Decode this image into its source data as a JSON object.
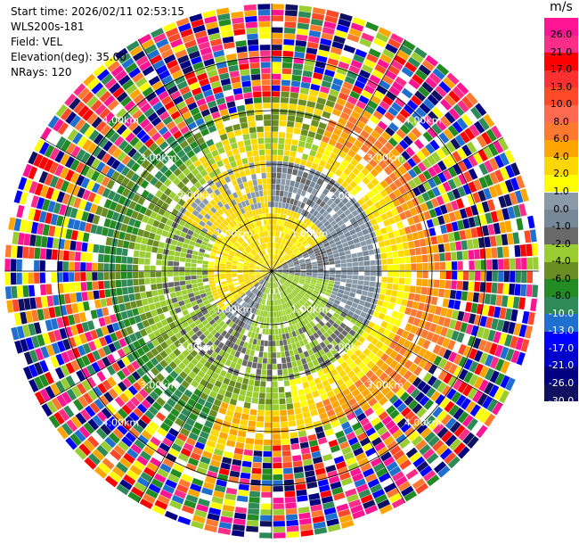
{
  "header": {
    "start_time": "Start time: 2026/02/11 02:53:15",
    "instrument": "WLS200s-181",
    "field": "Field: VEL",
    "elevation": "Elevation(deg): 35.00",
    "nrays": "NRays: 120"
  },
  "colorbar": {
    "unit": "m/s",
    "ticks": [
      "26.0",
      "21.0",
      "17.0",
      "13.0",
      "10.0",
      "8.0",
      "6.0",
      "4.0",
      "2.0",
      "1.0",
      "0.0",
      "-1.0",
      "-2.0",
      "-4.0",
      "-6.0",
      "-8.0",
      "-10.0",
      "-13.0",
      "-17.0",
      "-21.0",
      "-26.0",
      "-30.0"
    ],
    "colors": [
      "#ff1493",
      "#ff2d8a",
      "#ff0000",
      "#ff3030",
      "#ff4a2a",
      "#ff6a50",
      "#ff7a30",
      "#ffa500",
      "#ffd700",
      "#ffff00",
      "#8a9aa8",
      "#778899",
      "#696969",
      "#9acd32",
      "#6b8e23",
      "#228b22",
      "#2e8b57",
      "#1e6fd0",
      "#0000ff",
      "#0000cd",
      "#000080",
      "#101060"
    ]
  },
  "chart_data": {
    "type": "ppi",
    "title": "",
    "field": "VEL",
    "units": "m/s",
    "elevation_deg": 35.0,
    "n_rays": 120,
    "range_rings_km": [
      1.0,
      2.0,
      3.0,
      4.0
    ],
    "range_ring_labels": [
      "1.00km",
      "2.00km",
      "3.00km",
      "4.00km"
    ],
    "max_range_km": 5.0,
    "value_range": [
      -30.0,
      26.0
    ],
    "pattern": {
      "near_field": "yellow (+2 to +4 m/s) toward north-west, light green (-1 to -2 m/s) toward south-east, gray (~0 m/s) at sides",
      "mid_field": "green (-2 to -6 m/s) on west and south, orange/yellow (+4 to +6 m/s) on north-east and east",
      "far_field": "noisy multicolour returns beyond ~3.2 km"
    }
  }
}
